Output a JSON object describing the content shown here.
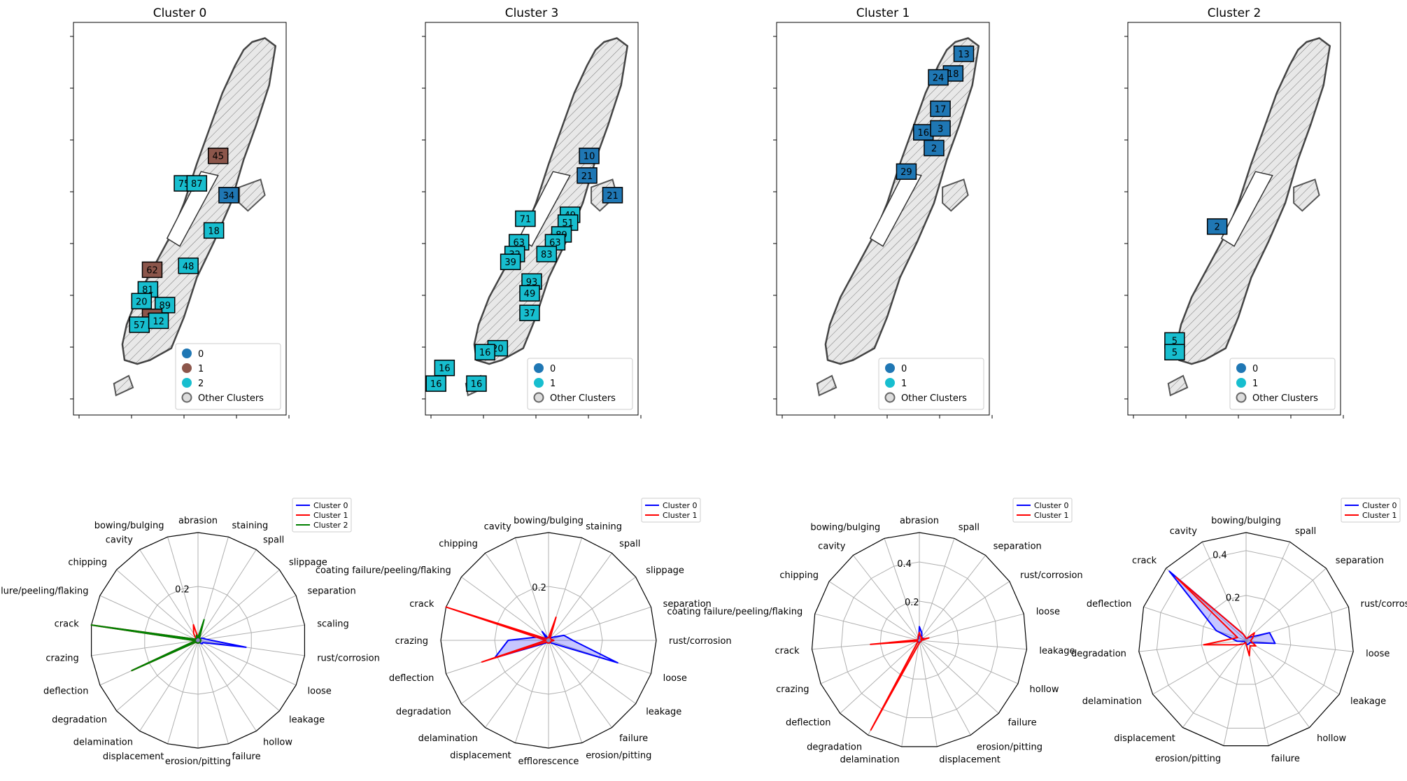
{
  "maps": [
    {
      "title": "Cluster 0",
      "labels": [
        {
          "text": "45",
          "c": 1
        },
        {
          "text": "75",
          "c": 2
        },
        {
          "text": "87",
          "c": 2
        },
        {
          "text": "34",
          "c": 0
        },
        {
          "text": "18",
          "c": 2
        },
        {
          "text": "62",
          "c": 1
        },
        {
          "text": "48",
          "c": 2
        },
        {
          "text": "81",
          "c": 2
        },
        {
          "text": "20",
          "c": 2
        },
        {
          "text": "89",
          "c": 2
        },
        {
          "text": "36",
          "c": 1
        },
        {
          "text": "57",
          "c": 2
        },
        {
          "text": "12",
          "c": 2
        }
      ],
      "legend": [
        {
          "label": "0",
          "color": "#1f77b4"
        },
        {
          "label": "1",
          "color": "#8c564b"
        },
        {
          "label": "2",
          "color": "#17becf"
        },
        {
          "label": "Other Clusters",
          "color": "other"
        }
      ]
    },
    {
      "title": "Cluster 3",
      "labels": [
        {
          "text": "10",
          "c": 0
        },
        {
          "text": "21",
          "c": 0
        },
        {
          "text": "21",
          "c": 0
        },
        {
          "text": "49",
          "c": 1
        },
        {
          "text": "71",
          "c": 1
        },
        {
          "text": "51",
          "c": 1
        },
        {
          "text": "89",
          "c": 1
        },
        {
          "text": "63",
          "c": 1
        },
        {
          "text": "63",
          "c": 1
        },
        {
          "text": "32",
          "c": 1
        },
        {
          "text": "83",
          "c": 1
        },
        {
          "text": "39",
          "c": 1
        },
        {
          "text": "93",
          "c": 1
        },
        {
          "text": "49",
          "c": 1
        },
        {
          "text": "37",
          "c": 1
        },
        {
          "text": "20",
          "c": 1
        },
        {
          "text": "16",
          "c": 1
        },
        {
          "text": "16",
          "c": 1
        },
        {
          "text": "16",
          "c": 1
        },
        {
          "text": "16",
          "c": 1
        }
      ],
      "legend": [
        {
          "label": "0",
          "color": "#1f77b4"
        },
        {
          "label": "1",
          "color": "#17becf"
        },
        {
          "label": "Other Clusters",
          "color": "other"
        }
      ]
    },
    {
      "title": "Cluster 1",
      "labels": [
        {
          "text": "13",
          "c": 0
        },
        {
          "text": "18",
          "c": 0
        },
        {
          "text": "24",
          "c": 0
        },
        {
          "text": "17",
          "c": 0
        },
        {
          "text": "16",
          "c": 0
        },
        {
          "text": "3",
          "c": 0
        },
        {
          "text": "2",
          "c": 0
        },
        {
          "text": "29",
          "c": 0
        }
      ],
      "legend": [
        {
          "label": "0",
          "color": "#1f77b4"
        },
        {
          "label": "1",
          "color": "#17becf"
        },
        {
          "label": "Other Clusters",
          "color": "other"
        }
      ]
    },
    {
      "title": "Cluster 2",
      "labels": [
        {
          "text": "2",
          "c": 0
        },
        {
          "text": "5",
          "c": 1
        },
        {
          "text": "5",
          "c": 1
        }
      ],
      "legend": [
        {
          "label": "0",
          "color": "#1f77b4"
        },
        {
          "label": "1",
          "color": "#17becf"
        },
        {
          "label": "Other Clusters",
          "color": "other"
        }
      ]
    }
  ],
  "chart_data": [
    {
      "type": "radar",
      "categories": [
        "abrasion",
        "staining",
        "spall",
        "slippage",
        "separation",
        "scaling",
        "rust/corrosion",
        "loose",
        "leakage",
        "hollow",
        "failure",
        "erosion/pitting",
        "displacement",
        "delamination",
        "degradation",
        "deflection",
        "crazing",
        "crack",
        "coating failure/peeling/flaking",
        "chipping",
        "cavity",
        "bowing/bulging"
      ],
      "rmax": 0.4,
      "rticks": [
        0.2
      ],
      "rtick_label_angle": 17,
      "series": [
        {
          "name": "Cluster 0",
          "color": "#0000ff",
          "fill": true,
          "values": [
            0.01,
            0.01,
            0.01,
            0.01,
            0.02,
            0.03,
            0.18,
            0.02,
            0.02,
            0.01,
            0.01,
            0.01,
            0.01,
            0.01,
            0.01,
            0.01,
            0.01,
            0.04,
            0.01,
            0.01,
            0.01,
            0.01
          ]
        },
        {
          "name": "Cluster 1",
          "color": "#ff0000",
          "fill": false,
          "values": [
            0.01,
            0.07,
            0.01,
            0.01,
            0.01,
            0.01,
            0.01,
            0.01,
            0.01,
            0.01,
            0.01,
            0.01,
            0.01,
            0.01,
            0.01,
            0.27,
            0.01,
            0.46,
            0.01,
            0.01,
            0.03,
            0.06
          ]
        },
        {
          "name": "Cluster 2",
          "color": "#008000",
          "fill": false,
          "values": [
            0.01,
            0.08,
            0.01,
            0.01,
            0.01,
            0.01,
            0.01,
            0.01,
            0.01,
            0.01,
            0.01,
            0.01,
            0.01,
            0.01,
            0.01,
            0.27,
            0.01,
            0.43,
            0.01,
            0.01,
            0.01,
            0.02
          ]
        }
      ]
    },
    {
      "type": "radar",
      "categories": [
        "bowing/bulging",
        "staining",
        "spall",
        "slippage",
        "separation",
        "rust/corrosion",
        "loose",
        "leakage",
        "failure",
        "erosion/pitting",
        "efflorescence",
        "displacement",
        "delamination",
        "degradation",
        "deflection",
        "crazing",
        "crack",
        "coating failure/peeling/flaking",
        "chipping",
        "cavity"
      ],
      "rmax": 0.4,
      "rticks": [
        0.2
      ],
      "rtick_label_angle": 10,
      "series": [
        {
          "name": "Cluster 0",
          "color": "#0000ff",
          "fill": true,
          "values": [
            0.01,
            0.02,
            0.01,
            0.02,
            0.06,
            0.09,
            0.27,
            0.02,
            0.01,
            0.01,
            0.01,
            0.01,
            0.01,
            0.02,
            0.21,
            0.15,
            0.04,
            0.01,
            0.04,
            0.01
          ]
        },
        {
          "name": "Cluster 1",
          "color": "#ff0000",
          "fill": false,
          "values": [
            0.01,
            0.09,
            0.01,
            0.01,
            0.01,
            0.02,
            0.01,
            0.01,
            0.01,
            0.01,
            0.01,
            0.01,
            0.01,
            0.01,
            0.26,
            0.01,
            0.41,
            0.01,
            0.01,
            0.01
          ]
        }
      ]
    },
    {
      "type": "radar",
      "categories": [
        "abrasion",
        "spall",
        "separation",
        "rust/corrosion",
        "loose",
        "leakage",
        "hollow",
        "failure",
        "erosion/pitting",
        "displacement",
        "delamination",
        "degradation",
        "deflection",
        "crazing",
        "crack",
        "coating failure/peeling/flaking",
        "chipping",
        "cavity",
        "bowing/bulging"
      ],
      "rmax": 0.55,
      "rticks": [
        0.2,
        0.4
      ],
      "rtick_label_angle": 11,
      "series": [
        {
          "name": "Cluster 0",
          "color": "#0000ff",
          "fill": true,
          "values": [
            0.07,
            0.04,
            0.02,
            0.02,
            0.03,
            0.01,
            0.01,
            0.01,
            0.01,
            0.01,
            0.01,
            0.01,
            0.01,
            0.01,
            0.03,
            0.01,
            0.01,
            0.01,
            0.01
          ]
        },
        {
          "name": "Cluster 1",
          "color": "#ff0000",
          "fill": false,
          "values": [
            0.04,
            0.02,
            0.02,
            0.01,
            0.05,
            0.01,
            0.01,
            0.01,
            0.01,
            0.01,
            0.02,
            0.52,
            0.01,
            0.01,
            0.25,
            0.01,
            0.01,
            0.01,
            0.02
          ]
        }
      ]
    },
    {
      "type": "radar",
      "categories": [
        "bowing/bulging",
        "spall",
        "separation",
        "rust/corrosion",
        "loose",
        "leakage",
        "hollow",
        "failure",
        "erosion/pitting",
        "displacement",
        "delamination",
        "degradation",
        "deflection",
        "crack",
        "cavity"
      ],
      "rmax": 0.48,
      "rticks": [
        0.2,
        0.4
      ],
      "rtick_label_angle": 17,
      "series": [
        {
          "name": "Cluster 0",
          "color": "#0000ff",
          "fill": true,
          "values": [
            0.01,
            0.01,
            0.02,
            0.11,
            0.13,
            0.02,
            0.02,
            0.02,
            0.01,
            0.01,
            0.01,
            0.04,
            0.14,
            0.46,
            0.03
          ]
        },
        {
          "name": "Cluster 1",
          "color": "#ff0000",
          "fill": false,
          "values": [
            0.01,
            0.01,
            0.05,
            0.03,
            0.02,
            0.05,
            0.03,
            0.07,
            0.01,
            0.02,
            0.04,
            0.19,
            0.04,
            0.42,
            0.03
          ]
        }
      ]
    }
  ]
}
